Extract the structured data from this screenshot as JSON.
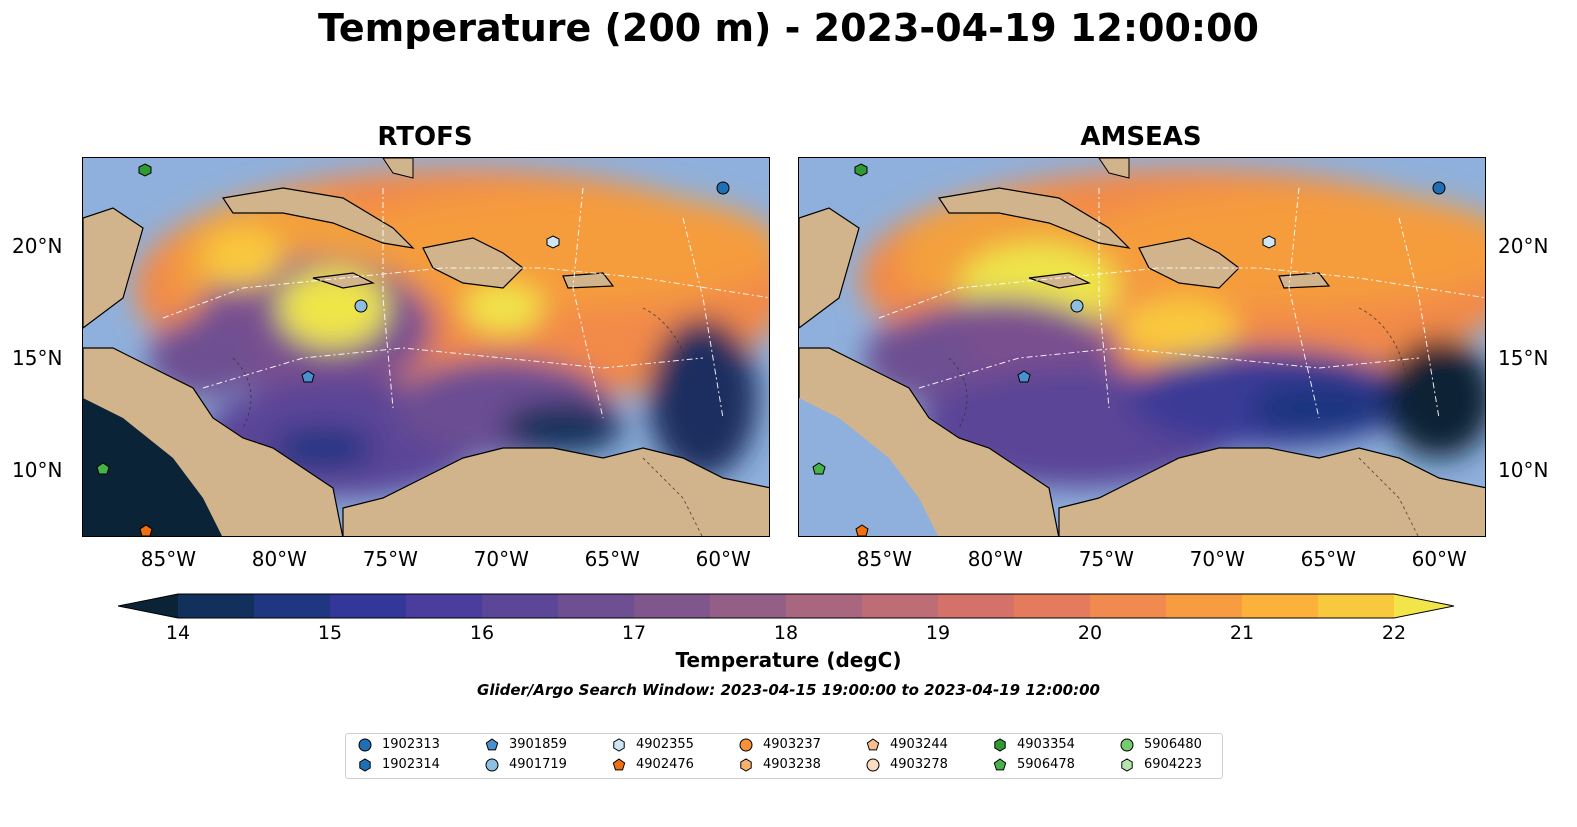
{
  "title": "Temperature (200 m) - 2023-04-19 12:00:00",
  "panels": [
    {
      "title": "RTOFS"
    },
    {
      "title": "AMSEAS"
    }
  ],
  "map_extent": {
    "lon": [
      -89,
      -58
    ],
    "lat": [
      7,
      24
    ]
  },
  "lon_ticks": [
    "85°W",
    "80°W",
    "75°W",
    "70°W",
    "65°W",
    "60°W"
  ],
  "lon_tick_values": [
    -85,
    -80,
    -75,
    -70,
    -65,
    -60
  ],
  "lat_ticks": [
    "20°N",
    "15°N",
    "10°N"
  ],
  "lat_tick_values": [
    20,
    15,
    10
  ],
  "colorbar": {
    "label": "Temperature (degC)",
    "min": 14,
    "max": 22,
    "step": 0.5,
    "tick_labels": [
      "14",
      "15",
      "16",
      "17",
      "18",
      "19",
      "20",
      "21",
      "22"
    ],
    "colors": [
      "#0b2336",
      "#12305c",
      "#1f3680",
      "#33379a",
      "#4a3d9e",
      "#5c4698",
      "#6d4f92",
      "#7f578c",
      "#935f86",
      "#a8667f",
      "#be6d76",
      "#d4726a",
      "#e57b5d",
      "#f08a4e",
      "#f79c41",
      "#fbb13a",
      "#f9c93d",
      "#f1e54a"
    ]
  },
  "search_window": "Glider/Argo Search Window: 2023-04-15 19:00:00 to 2023-04-19 12:00:00",
  "legend": [
    {
      "label": "1902313",
      "marker": "circle",
      "color": "#1f6fb4"
    },
    {
      "label": "1902314",
      "marker": "hexagon",
      "color": "#1f6fb4"
    },
    {
      "label": "3901859",
      "marker": "pentagon",
      "color": "#4a90cf"
    },
    {
      "label": "4901719",
      "marker": "circle",
      "color": "#8ebfe3"
    },
    {
      "label": "4902355",
      "marker": "hexagon",
      "color": "#cfe6f6"
    },
    {
      "label": "4902476",
      "marker": "pentagon",
      "color": "#f06f0f"
    },
    {
      "label": "4903237",
      "marker": "circle",
      "color": "#f5923a"
    },
    {
      "label": "4903238",
      "marker": "hexagon",
      "color": "#f8b26b"
    },
    {
      "label": "4903244",
      "marker": "pentagon",
      "color": "#f8c08d"
    },
    {
      "label": "4903278",
      "marker": "circle",
      "color": "#fbdcc0"
    },
    {
      "label": "4903354",
      "marker": "hexagon",
      "color": "#2f9a32"
    },
    {
      "label": "5906478",
      "marker": "pentagon",
      "color": "#46b34a"
    },
    {
      "label": "5906480",
      "marker": "circle",
      "color": "#75cc6f"
    },
    {
      "label": "6904223",
      "marker": "hexagon",
      "color": "#b6e6ad"
    }
  ]
}
